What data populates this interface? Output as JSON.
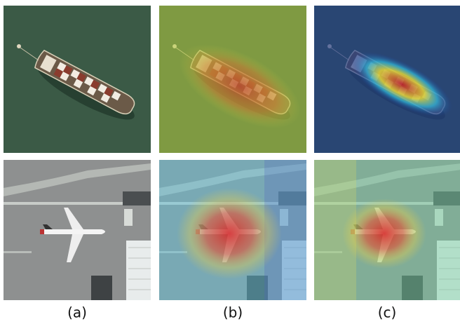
{
  "labels": [
    "(a)",
    "(b)",
    "(c)"
  ]
}
